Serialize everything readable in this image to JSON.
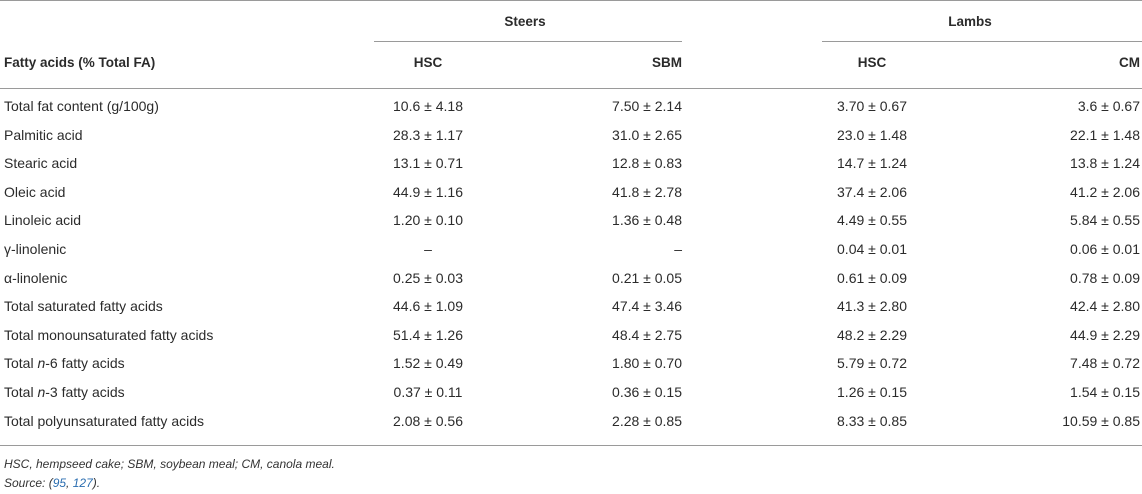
{
  "groups": [
    {
      "id": "steers",
      "label": "Steers"
    },
    {
      "id": "lambs",
      "label": "Lambs"
    }
  ],
  "header": {
    "first_col": "Fatty acids (% Total FA)",
    "cols": [
      "HSC",
      "SBM",
      "HSC",
      "CM"
    ]
  },
  "rows": [
    {
      "label": "Total fat content (g/100g)",
      "vals": [
        "10.6 ± 4.18",
        "7.50 ± 2.14",
        "3.70 ± 0.67",
        "3.6 ± 0.67"
      ]
    },
    {
      "label": "Palmitic acid",
      "vals": [
        "28.3 ± 1.17",
        "31.0 ± 2.65",
        "23.0 ± 1.48",
        "22.1 ± 1.48"
      ]
    },
    {
      "label": "Stearic acid",
      "vals": [
        "13.1 ± 0.71",
        "12.8 ± 0.83",
        "14.7 ± 1.24",
        "13.8 ± 1.24"
      ]
    },
    {
      "label": "Oleic acid",
      "vals": [
        "44.9 ± 1.16",
        "41.8 ± 2.78",
        "37.4 ± 2.06",
        "41.2 ± 2.06"
      ]
    },
    {
      "label": "Linoleic acid",
      "vals": [
        "1.20 ± 0.10",
        "1.36 ± 0.48",
        "4.49 ± 0.55",
        "5.84 ± 0.55"
      ]
    },
    {
      "label": "γ-linolenic",
      "vals": [
        "–",
        "–",
        "0.04 ± 0.01",
        "0.06 ± 0.01"
      ]
    },
    {
      "label": "α-linolenic",
      "vals": [
        "0.25 ± 0.03",
        "0.21 ± 0.05",
        "0.61 ± 0.09",
        "0.78 ± 0.09"
      ]
    },
    {
      "label": "Total saturated fatty acids",
      "vals": [
        "44.6 ± 1.09",
        "47.4 ± 3.46",
        "41.3 ± 2.80",
        "42.4 ± 2.80"
      ]
    },
    {
      "label": "Total monounsaturated fatty acids",
      "vals": [
        "51.4 ± 1.26",
        "48.4 ± 2.75",
        "48.2 ± 2.29",
        "44.9 ± 2.29"
      ]
    },
    {
      "label_pre": "Total ",
      "label_em": "n",
      "label_post": "-6 fatty acids",
      "vals": [
        "1.52 ± 0.49",
        "1.80 ± 0.70",
        "5.79 ± 0.72",
        "7.48 ± 0.72"
      ]
    },
    {
      "label_pre": "Total ",
      "label_em": "n",
      "label_post": "-3 fatty acids",
      "vals": [
        "0.37 ± 0.11",
        "0.36 ± 0.15",
        "1.26 ± 0.15",
        "1.54 ± 0.15"
      ]
    },
    {
      "label": "Total polyunsaturated fatty acids",
      "vals": [
        "2.08 ± 0.56",
        "2.28 ± 0.85",
        "8.33 ± 0.85",
        "10.59 ± 0.85"
      ]
    }
  ],
  "footnote": "HSC, hempseed cake; SBM, soybean meal; CM, canola meal.",
  "source": {
    "prefix": "Source: (",
    "refs": [
      "95",
      "127"
    ],
    "sep": ", ",
    "suffix": ")."
  }
}
